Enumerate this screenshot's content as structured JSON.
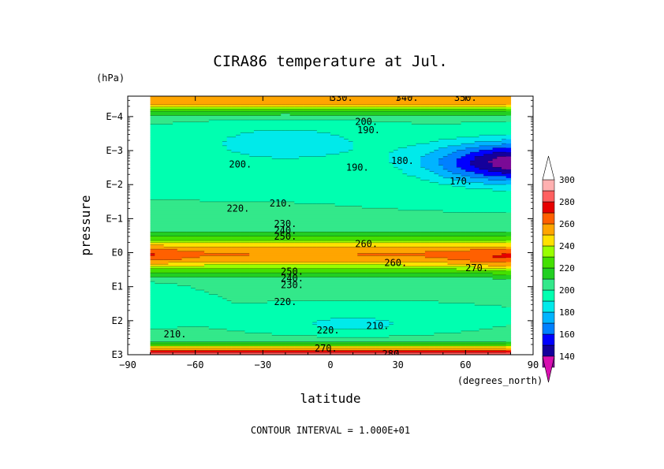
{
  "chart_data": {
    "type": "heatmap",
    "title": "CIRA86 temperature at Jul.",
    "xlabel": "latitude",
    "ylabel": "pressure",
    "x_unit": "(degrees_north)",
    "y_unit": "(hPa)",
    "footer": "CONTOUR INTERVAL = 1.000E+01",
    "xlim": [
      -90,
      90
    ],
    "x_ticks": [
      "−90",
      "−60",
      "−30",
      "0",
      "30",
      "60",
      "90"
    ],
    "y_ticks": [
      "E3",
      "E2",
      "E1",
      "E0",
      "E−1",
      "E−2",
      "E−3",
      "E−4"
    ],
    "y_tick_exponents": [
      3,
      2,
      1,
      0,
      -1,
      -2,
      -3,
      -4
    ],
    "ylim_log10_hPa": [
      3,
      -4.6
    ],
    "data_lat_range": [
      -80,
      80
    ],
    "contour_interval": 10,
    "colorbar": {
      "labels": [
        "300",
        "280",
        "260",
        "240",
        "220",
        "200",
        "180",
        "160",
        "140"
      ],
      "levels": [
        130,
        140,
        150,
        160,
        170,
        180,
        190,
        200,
        210,
        220,
        230,
        240,
        250,
        260,
        270,
        280,
        290,
        300
      ],
      "colors": [
        "#d80fb0",
        "#7b0a96",
        "#14009b",
        "#0000ff",
        "#0080ff",
        "#00b4ff",
        "#00eaea",
        "#00ffb0",
        "#33e88a",
        "#22cf22",
        "#44e000",
        "#99ff00",
        "#ffe100",
        "#ffa500",
        "#ff6000",
        "#e60000",
        "#ff6060",
        "#ffb0b0",
        "#ffffff"
      ]
    },
    "contour_labels": [
      {
        "text": "170.",
        "lat": 58,
        "logp": -2.1
      },
      {
        "text": "180.",
        "lat": 32,
        "logp": -2.7
      },
      {
        "text": "190.",
        "lat": 12,
        "logp": -2.5
      },
      {
        "text": "190.",
        "lat": 17,
        "logp": -3.6
      },
      {
        "text": "200.",
        "lat": 16,
        "logp": -3.85
      },
      {
        "text": "200.",
        "lat": -40,
        "logp": -2.6
      },
      {
        "text": "220.",
        "lat": -41,
        "logp": -1.3
      },
      {
        "text": "210.",
        "lat": -22,
        "logp": -1.45
      },
      {
        "text": "230.",
        "lat": -20,
        "logp": -0.85
      },
      {
        "text": "240.",
        "lat": -20,
        "logp": -0.65
      },
      {
        "text": "250.",
        "lat": -20,
        "logp": -0.47
      },
      {
        "text": "260.",
        "lat": 16,
        "logp": -0.25
      },
      {
        "text": "260.",
        "lat": 29,
        "logp": 0.3
      },
      {
        "text": "270.",
        "lat": 65,
        "logp": 0.45
      },
      {
        "text": "250.",
        "lat": -17,
        "logp": 0.55
      },
      {
        "text": "240.",
        "lat": -17,
        "logp": 0.75
      },
      {
        "text": "230.",
        "lat": -17,
        "logp": 0.95
      },
      {
        "text": "220.",
        "lat": -20,
        "logp": 1.45
      },
      {
        "text": "220.",
        "lat": -1,
        "logp": 2.28
      },
      {
        "text": "210.",
        "lat": 21,
        "logp": 2.15
      },
      {
        "text": "210.",
        "lat": -69,
        "logp": 2.4
      },
      {
        "text": "270.",
        "lat": -2,
        "logp": 2.82
      },
      {
        "text": "280.",
        "lat": 28,
        "logp": 2.98
      },
      {
        "text": "330.",
        "lat": 5,
        "logp": -4.55
      },
      {
        "text": "340.",
        "lat": 34,
        "logp": -4.55
      },
      {
        "text": "350.",
        "lat": 60,
        "logp": -4.55
      }
    ]
  }
}
